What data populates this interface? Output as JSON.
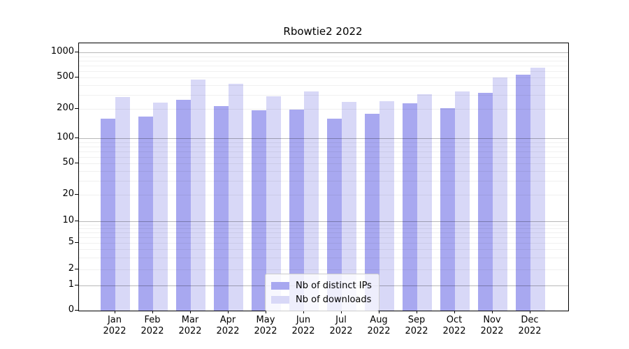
{
  "page": {
    "background_color": "#ffffff"
  },
  "chart_data": {
    "type": "bar",
    "title": "Rbowtie2 2022",
    "year_label": "2022",
    "categories": [
      "Jan",
      "Feb",
      "Mar",
      "Apr",
      "May",
      "Jun",
      "Jul",
      "Aug",
      "Sep",
      "Oct",
      "Nov",
      "Dec"
    ],
    "series": [
      {
        "name": "Nb of distinct IPs",
        "color": "#a8a8f0",
        "values": [
          160,
          166,
          260,
          218,
          195,
          198,
          160,
          178,
          235,
          204,
          320,
          540
        ]
      },
      {
        "name": "Nb of downloads",
        "color": "#d8d8f7",
        "values": [
          285,
          240,
          470,
          415,
          290,
          334,
          245,
          253,
          310,
          336,
          500,
          655
        ]
      }
    ],
    "yscale": "symlog",
    "ylim": [
      0,
      1000
    ],
    "yticks": [
      0,
      1,
      2,
      5,
      10,
      20,
      50,
      100,
      200,
      500,
      1000
    ],
    "major_gridlines": [
      1,
      10,
      100,
      1000
    ],
    "grid": true,
    "legend_position": "lower-center"
  }
}
